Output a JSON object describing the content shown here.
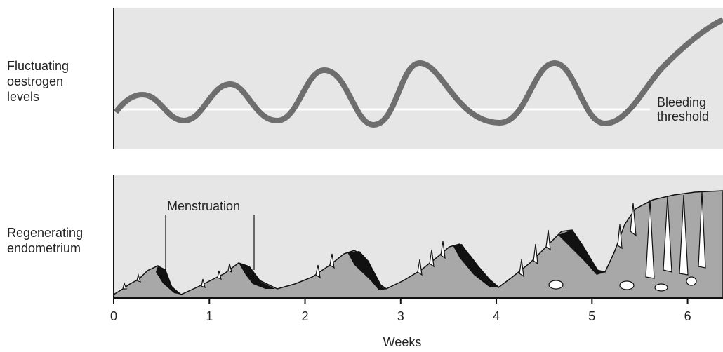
{
  "top_panel": {
    "label_lines": [
      "Fluctuating",
      "oestrogen",
      "levels"
    ],
    "threshold_lines": [
      "Bleeding",
      "threshold"
    ]
  },
  "bottom_panel": {
    "label_lines": [
      "Regenerating",
      "endometrium"
    ],
    "annotation": "Menstruation"
  },
  "x_axis": {
    "label": "Weeks",
    "xlim": [
      0,
      6.37
    ],
    "xticks": [
      0,
      1,
      2,
      3,
      4,
      5,
      6
    ]
  }
}
